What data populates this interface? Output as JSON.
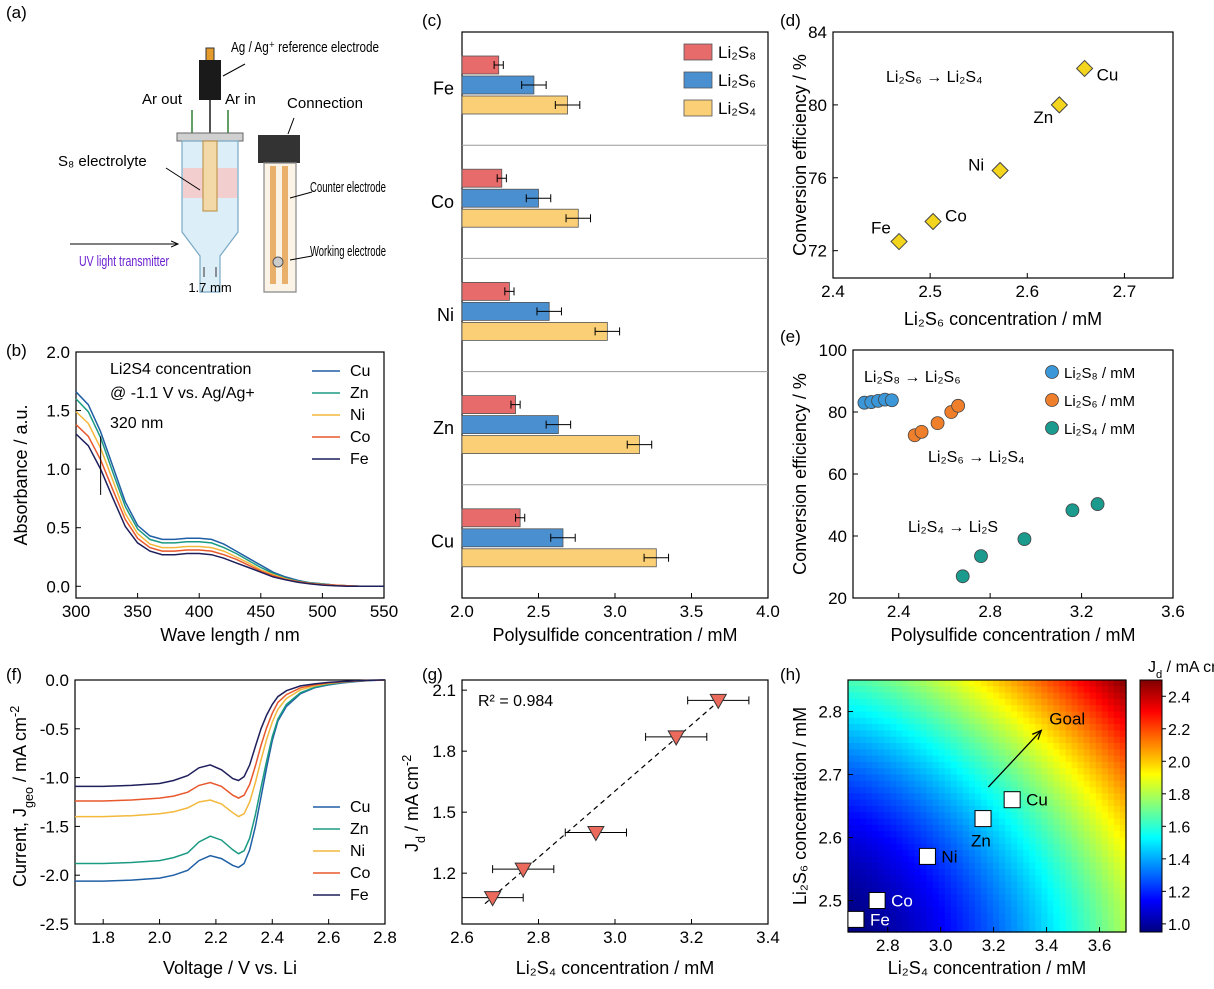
{
  "panel_labels": [
    "(a)",
    "(b)",
    "(c)",
    "(d)",
    "(e)",
    "(f)",
    "(g)",
    "(h)"
  ],
  "schematic": {
    "ref_electrode": "Ag / Ag⁺ reference electrode",
    "ar_out": "Ar out",
    "ar_in": "Ar in",
    "connection": "Connection",
    "electrolyte": "S₈ electrolyte",
    "counter": "Counter electrode",
    "working": "Working electrode",
    "uv": "UV light transmitter",
    "dimension": "1.7 mm"
  },
  "colors": {
    "Cu": "#1f5fa5",
    "Zn": "#1b9a82",
    "Ni": "#f3b83c",
    "Co": "#e8582c",
    "Fe": "#1f1f5c",
    "Li2S8": "#e76b6b",
    "Li2S6": "#4a90d0",
    "Li2S4": "#fbcf76",
    "marker_yellow": "#f4d51e",
    "marker_tri": "#ec6a5c",
    "scatter_S8": "#3b97d8",
    "scatter_S6": "#f07f2c",
    "scatter_S4": "#1b9a8e"
  },
  "chart_data": [
    {
      "id": "b",
      "type": "line",
      "title": "Li2S4 concentration @ -1.1 V vs. Ag/Ag+",
      "annotation": "320 nm",
      "xlabel": "Wave length / nm",
      "ylabel": "Absorbance / a.u.",
      "xlim": [
        300,
        550
      ],
      "ylim": [
        -0.1,
        2.0
      ],
      "xticks": [
        300,
        350,
        400,
        450,
        500,
        550
      ],
      "yticks": [
        0.0,
        0.5,
        1.0,
        1.5,
        2.0
      ],
      "x": [
        300,
        310,
        320,
        330,
        340,
        350,
        360,
        370,
        380,
        390,
        400,
        410,
        420,
        430,
        440,
        450,
        460,
        470,
        480,
        490,
        500,
        510,
        520,
        530,
        540,
        550
      ],
      "series": [
        {
          "name": "Cu",
          "values": [
            1.66,
            1.55,
            1.32,
            1.02,
            0.72,
            0.52,
            0.43,
            0.4,
            0.4,
            0.41,
            0.41,
            0.4,
            0.36,
            0.3,
            0.24,
            0.18,
            0.12,
            0.08,
            0.05,
            0.03,
            0.02,
            0.01,
            0.005,
            0.0,
            0.0,
            0.0
          ]
        },
        {
          "name": "Zn",
          "values": [
            1.6,
            1.49,
            1.27,
            0.97,
            0.68,
            0.49,
            0.4,
            0.37,
            0.37,
            0.38,
            0.38,
            0.37,
            0.33,
            0.28,
            0.22,
            0.16,
            0.11,
            0.07,
            0.045,
            0.03,
            0.02,
            0.01,
            0.005,
            0.0,
            0.0,
            0.0
          ]
        },
        {
          "name": "Ni",
          "values": [
            1.49,
            1.39,
            1.18,
            0.9,
            0.62,
            0.45,
            0.36,
            0.33,
            0.33,
            0.34,
            0.34,
            0.33,
            0.3,
            0.25,
            0.2,
            0.14,
            0.1,
            0.065,
            0.04,
            0.025,
            0.015,
            0.01,
            0.005,
            0.0,
            0.0,
            0.0
          ]
        },
        {
          "name": "Co",
          "values": [
            1.38,
            1.28,
            1.08,
            0.82,
            0.57,
            0.41,
            0.33,
            0.3,
            0.3,
            0.31,
            0.31,
            0.3,
            0.27,
            0.23,
            0.18,
            0.13,
            0.09,
            0.06,
            0.04,
            0.025,
            0.015,
            0.01,
            0.005,
            0.0,
            0.0,
            0.0
          ]
        },
        {
          "name": "Fe",
          "values": [
            1.3,
            1.2,
            1.0,
            0.75,
            0.51,
            0.37,
            0.3,
            0.27,
            0.27,
            0.28,
            0.28,
            0.27,
            0.24,
            0.2,
            0.16,
            0.12,
            0.08,
            0.055,
            0.035,
            0.02,
            0.01,
            0.005,
            0.0,
            0.0,
            0.0,
            0.0
          ]
        }
      ]
    },
    {
      "id": "c",
      "type": "bar",
      "xlabel": "Polysulfide concentration / mM",
      "xlim": [
        2.0,
        4.0
      ],
      "xticks": [
        2.0,
        2.5,
        3.0,
        3.5,
        4.0
      ],
      "categories": [
        "Fe",
        "Co",
        "Ni",
        "Zn",
        "Cu"
      ],
      "series": [
        {
          "name": "Li₂S₈",
          "values": [
            2.24,
            2.26,
            2.31,
            2.35,
            2.38
          ],
          "errors": [
            0.03,
            0.03,
            0.03,
            0.03,
            0.03
          ]
        },
        {
          "name": "Li₂S₆",
          "values": [
            2.47,
            2.5,
            2.57,
            2.63,
            2.66
          ],
          "errors": [
            0.08,
            0.08,
            0.08,
            0.08,
            0.08
          ]
        },
        {
          "name": "Li₂S₄",
          "values": [
            2.69,
            2.76,
            2.95,
            3.16,
            3.27
          ],
          "errors": [
            0.08,
            0.08,
            0.08,
            0.08,
            0.08
          ]
        }
      ]
    },
    {
      "id": "d",
      "type": "scatter",
      "annotation": "Li₂S₆ → Li₂S₄",
      "xlabel": "Li₂S₆ concentration / mM",
      "ylabel": "Conversion efficiency / %",
      "xlim": [
        2.4,
        2.75
      ],
      "ylim": [
        70.5,
        84.0
      ],
      "xticks": [
        2.4,
        2.5,
        2.6,
        2.7
      ],
      "yticks": [
        72,
        76,
        80,
        84
      ],
      "points": [
        {
          "label": "Fe",
          "x": 2.468,
          "y": 72.5
        },
        {
          "label": "Co",
          "x": 2.503,
          "y": 73.6
        },
        {
          "label": "Ni",
          "x": 2.572,
          "y": 76.4
        },
        {
          "label": "Zn",
          "x": 2.633,
          "y": 80.0
        },
        {
          "label": "Cu",
          "x": 2.659,
          "y": 82.0
        }
      ]
    },
    {
      "id": "e",
      "type": "scatter",
      "xlabel": "Polysulfide concentration / mM",
      "ylabel": "Conversion efficiency / %",
      "xlim": [
        2.2,
        3.6
      ],
      "ylim": [
        20,
        100
      ],
      "xticks": [
        2.4,
        2.8,
        3.2,
        3.6
      ],
      "yticks": [
        20,
        40,
        60,
        80,
        100
      ],
      "annotations": [
        "Li₂S₈ → Li₂S₆",
        "Li₂S₆ → Li₂S₄",
        "Li₂S₄ → Li₂S"
      ],
      "series": [
        {
          "name": "Li₂S₈ / mM",
          "x": [
            2.25,
            2.28,
            2.31,
            2.34,
            2.37
          ],
          "y": [
            83.0,
            83.2,
            83.6,
            84.0,
            83.8
          ]
        },
        {
          "name": "Li₂S₆ / mM",
          "x": [
            2.47,
            2.5,
            2.57,
            2.63,
            2.66
          ],
          "y": [
            72.5,
            73.6,
            76.4,
            80.0,
            82.0
          ]
        },
        {
          "name": "Li₂S₄ / mM",
          "x": [
            2.68,
            2.76,
            2.95,
            3.16,
            3.27
          ],
          "y": [
            27.0,
            33.5,
            39.0,
            48.3,
            50.3
          ]
        }
      ]
    },
    {
      "id": "f",
      "type": "line",
      "xlabel": "Voltage / V vs. Li",
      "ylabel": "Current, J_geo / mA cm⁻²",
      "xlim": [
        1.7,
        2.8
      ],
      "ylim": [
        -2.5,
        0.0
      ],
      "xticks": [
        1.8,
        2.0,
        2.2,
        2.4,
        2.6,
        2.8
      ],
      "yticks": [
        0.0,
        -0.5,
        -1.0,
        -1.5,
        -2.0,
        -2.5
      ],
      "x": [
        1.7,
        1.8,
        1.9,
        2.0,
        2.05,
        2.1,
        2.14,
        2.18,
        2.22,
        2.26,
        2.28,
        2.3,
        2.32,
        2.34,
        2.36,
        2.38,
        2.4,
        2.42,
        2.45,
        2.5,
        2.55,
        2.6,
        2.65,
        2.7,
        2.75,
        2.8
      ],
      "series": [
        {
          "name": "Cu",
          "values": [
            -2.06,
            -2.06,
            -2.05,
            -2.03,
            -2.0,
            -1.95,
            -1.85,
            -1.8,
            -1.83,
            -1.9,
            -1.92,
            -1.88,
            -1.74,
            -1.5,
            -1.2,
            -0.9,
            -0.62,
            -0.42,
            -0.27,
            -0.14,
            -0.08,
            -0.05,
            -0.03,
            -0.015,
            -0.005,
            0.0
          ]
        },
        {
          "name": "Zn",
          "values": [
            -1.88,
            -1.88,
            -1.87,
            -1.85,
            -1.82,
            -1.77,
            -1.66,
            -1.6,
            -1.64,
            -1.74,
            -1.78,
            -1.75,
            -1.62,
            -1.38,
            -1.1,
            -0.83,
            -0.58,
            -0.4,
            -0.25,
            -0.13,
            -0.075,
            -0.045,
            -0.025,
            -0.012,
            -0.004,
            0.0
          ]
        },
        {
          "name": "Ni",
          "values": [
            -1.4,
            -1.4,
            -1.39,
            -1.37,
            -1.35,
            -1.31,
            -1.25,
            -1.23,
            -1.27,
            -1.36,
            -1.4,
            -1.37,
            -1.25,
            -1.05,
            -0.82,
            -0.61,
            -0.43,
            -0.3,
            -0.19,
            -0.1,
            -0.06,
            -0.035,
            -0.02,
            -0.01,
            -0.003,
            0.0
          ]
        },
        {
          "name": "Co",
          "values": [
            -1.24,
            -1.24,
            -1.23,
            -1.21,
            -1.19,
            -1.15,
            -1.08,
            -1.05,
            -1.09,
            -1.18,
            -1.21,
            -1.18,
            -1.07,
            -0.88,
            -0.67,
            -0.49,
            -0.34,
            -0.23,
            -0.15,
            -0.08,
            -0.05,
            -0.03,
            -0.018,
            -0.009,
            -0.003,
            0.0
          ]
        },
        {
          "name": "Fe",
          "values": [
            -1.09,
            -1.09,
            -1.08,
            -1.06,
            -1.03,
            -0.98,
            -0.9,
            -0.87,
            -0.92,
            -1.01,
            -1.03,
            -0.99,
            -0.87,
            -0.68,
            -0.5,
            -0.36,
            -0.25,
            -0.17,
            -0.11,
            -0.06,
            -0.04,
            -0.025,
            -0.015,
            -0.008,
            -0.002,
            0.0
          ]
        }
      ]
    },
    {
      "id": "g",
      "type": "scatter",
      "annotation": "R² = 0.984",
      "xlabel": "Li₂S₄ concentration / mM",
      "ylabel": "J_d / mA cm⁻²",
      "xlim": [
        2.6,
        3.4
      ],
      "ylim": [
        0.95,
        2.15
      ],
      "xticks": [
        2.6,
        2.8,
        3.0,
        3.2,
        3.4
      ],
      "yticks": [
        1.2,
        1.5,
        1.8,
        2.1
      ],
      "points": [
        {
          "x": 2.68,
          "y": 1.08,
          "xerr": 0.08
        },
        {
          "x": 2.76,
          "y": 1.22,
          "xerr": 0.08
        },
        {
          "x": 2.95,
          "y": 1.4,
          "xerr": 0.08
        },
        {
          "x": 3.16,
          "y": 1.87,
          "xerr": 0.08
        },
        {
          "x": 3.27,
          "y": 2.05,
          "xerr": 0.08
        }
      ],
      "fit": {
        "x": [
          2.66,
          3.28
        ],
        "y": [
          1.05,
          2.06
        ]
      }
    },
    {
      "id": "h",
      "type": "heatmap",
      "xlabel": "Li₂S₄ concentration / mM",
      "ylabel": "Li₂S₆ concentration / mM",
      "colorbar_label": "J_d / mA cm⁻²",
      "xlim": [
        2.65,
        3.7
      ],
      "ylim": [
        2.45,
        2.85
      ],
      "xticks": [
        2.8,
        3.0,
        3.2,
        3.4,
        3.6
      ],
      "yticks": [
        2.5,
        2.6,
        2.7,
        2.8
      ],
      "zlim": [
        0.95,
        2.5
      ],
      "cbar_ticks": [
        1.0,
        1.2,
        1.4,
        1.6,
        1.8,
        2.0,
        2.2,
        2.4
      ],
      "goal": {
        "label": "Goal",
        "from": [
          3.18,
          2.68
        ],
        "to": [
          3.38,
          2.77
        ]
      },
      "points": [
        {
          "label": "Fe",
          "x": 2.68,
          "y": 2.47
        },
        {
          "label": "Co",
          "x": 2.76,
          "y": 2.5
        },
        {
          "label": "Ni",
          "x": 2.95,
          "y": 2.57
        },
        {
          "label": "Zn",
          "x": 3.16,
          "y": 2.63
        },
        {
          "label": "Cu",
          "x": 3.27,
          "y": 2.66
        }
      ]
    }
  ]
}
